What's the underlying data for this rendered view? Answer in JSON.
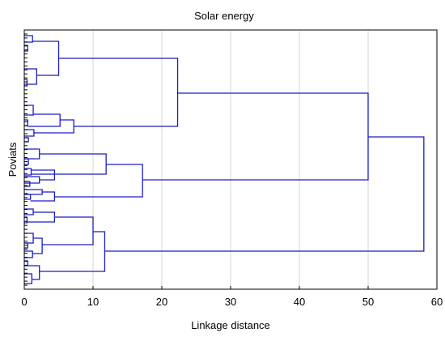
{
  "chart_data": {
    "type": "dendrogram",
    "title": "Solar energy",
    "xlabel": "Linkage distance",
    "ylabel": "Poviats",
    "xlim": [
      0,
      60
    ],
    "xticks": [
      0,
      10,
      20,
      30,
      40,
      50,
      60
    ],
    "grid": true,
    "orientation": "horizontal",
    "leaf_count": 64,
    "merges": [
      {
        "children": [
          "c1",
          "c2"
        ],
        "distance": 58.1
      },
      {
        "id": "c1",
        "children": [
          "c3",
          "c4"
        ],
        "distance": 50.0
      },
      {
        "id": "c3",
        "children": [
          "c5",
          "c6"
        ],
        "distance": 22.3
      },
      {
        "id": "c5",
        "children": [
          "c7",
          "c8"
        ],
        "distance": 5.0
      },
      {
        "id": "c6",
        "children": [
          "c9",
          "c10"
        ],
        "distance": 7.2
      },
      {
        "id": "c9",
        "distance": 5.2
      },
      {
        "id": "c4",
        "children": [
          "c11",
          "c12"
        ],
        "distance": 17.2
      },
      {
        "id": "c11",
        "distance": 11.9
      },
      {
        "id": "c12",
        "children": [
          "c13",
          "c14"
        ],
        "distance": 4.4
      },
      {
        "id": "c2",
        "children": [
          "c15",
          "c16"
        ],
        "distance": 11.7
      },
      {
        "id": "c15",
        "children": [
          "c17",
          "c18"
        ],
        "distance": 10.0
      },
      {
        "id": "c17",
        "distance": 4.4
      },
      {
        "id": "c18",
        "distance": 2.6
      },
      {
        "id": "c16",
        "distance": 2.2
      }
    ]
  }
}
